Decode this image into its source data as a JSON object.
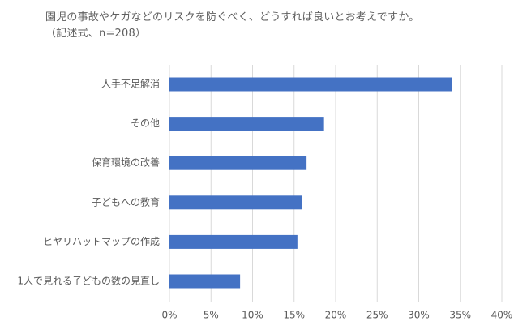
{
  "chart_data": {
    "type": "bar",
    "orientation": "horizontal",
    "title": "園児の事故やケガなどのリスクを防ぐべく、どうすれば良いとお考えですか。",
    "subtitle": "（記述式、n=208）",
    "categories": [
      "人手不足解消",
      "その他",
      "保育環境の改善",
      "子どもへの教育",
      "ヒヤリハットマップの作成",
      "1人で見れる子どもの数の見直し"
    ],
    "values": [
      34,
      18.6,
      16.5,
      16,
      15.4,
      8.5
    ],
    "unit": "%",
    "xlabel": "",
    "ylabel": "",
    "xlim": [
      0,
      40
    ],
    "ticks": [
      0,
      5,
      10,
      15,
      20,
      25,
      30,
      35,
      40
    ],
    "tick_labels": [
      "0%",
      "5%",
      "10%",
      "15%",
      "20%",
      "25%",
      "30%",
      "35%",
      "40%"
    ],
    "grid": true,
    "legend": "none",
    "colors": {
      "bar": "#4472c4",
      "grid": "#d9d9d9",
      "text": "#595959"
    }
  }
}
